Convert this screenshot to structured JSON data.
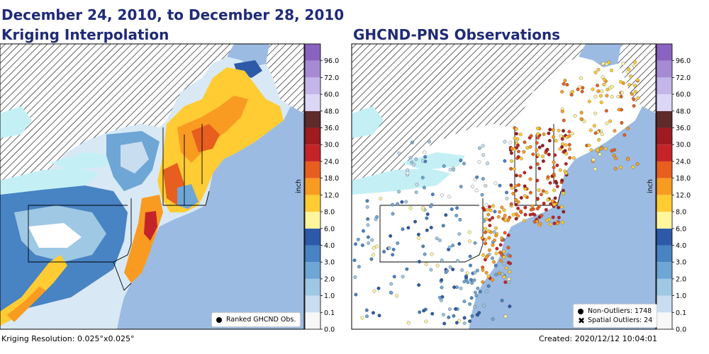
{
  "header": {
    "date_range": "December 24, 2010, to December 28, 2010"
  },
  "panels": [
    {
      "title": "Kriging Interpolation",
      "legend_items": [
        {
          "label": "Ranked GHCND Obs.",
          "marker": "dot"
        }
      ],
      "footer": "Kriging Resolution: 0.025°x0.025°"
    },
    {
      "title": "GHCND-PNS Observations",
      "legend_items": [
        {
          "label": "Non-Outliers: 1748",
          "marker": "dot"
        },
        {
          "label": "Spatial Outliers: 24",
          "marker": "x"
        }
      ],
      "footer": "Created: 2020/12/12 10:04:01"
    }
  ],
  "colorbar": {
    "unit_label": "inch",
    "ticks": [
      "0.0",
      "0.1",
      "1.0",
      "2.0",
      "3.0",
      "4.0",
      "6.0",
      "8.0",
      "12.0",
      "18.0",
      "24.0",
      "30.0",
      "36.0",
      "48.0",
      "60.0",
      "72.0",
      "96.0"
    ],
    "colors": [
      "#f7f7f7",
      "#c8ddf0",
      "#9ec8e3",
      "#6ea6d5",
      "#4883c3",
      "#2d5aa8",
      "#fff59d",
      "#ffcc33",
      "#f99b21",
      "#e75e1f",
      "#c42428",
      "#9e1b1f",
      "#5e2a2a",
      "#dcd6f7",
      "#c4b6ea",
      "#a68bd4",
      "#8a63c0"
    ]
  },
  "map_colors": {
    "ocean": "#9cbbe2",
    "lake": "#c4f0f5",
    "hatch": "#000000"
  }
}
